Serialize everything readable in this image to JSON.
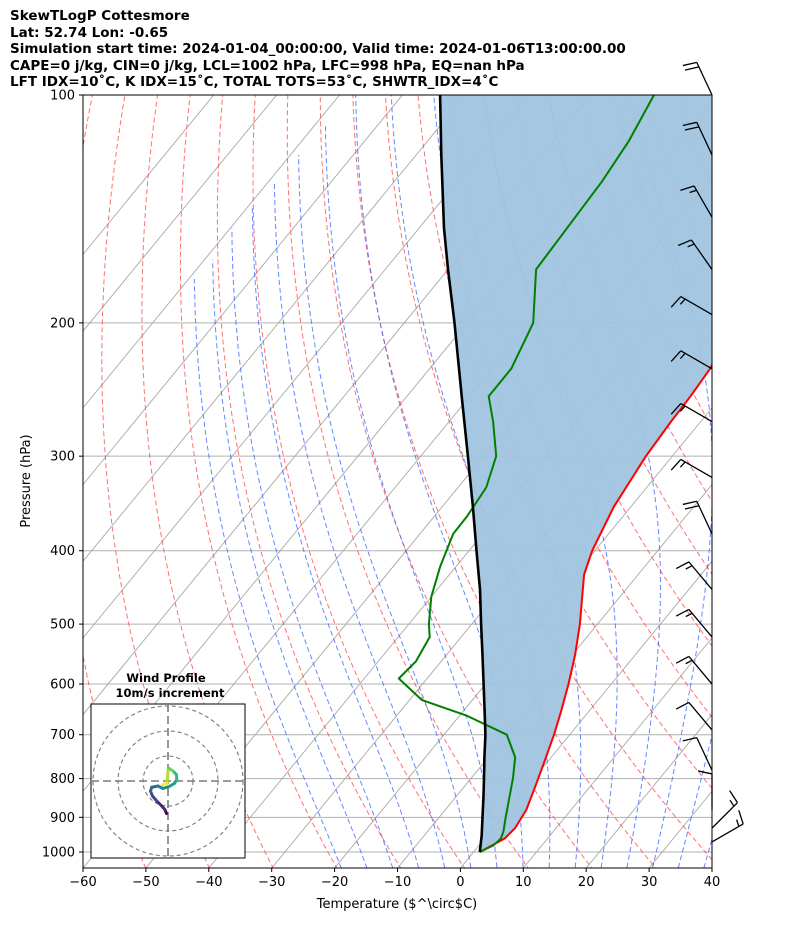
{
  "header": {
    "line1": "SkewTLogP Cottesmore",
    "line2": "Lat: 52.74   Lon: -0.65",
    "line3": "Simulation start time: 2024-01-04_00:00:00, Valid time: 2024-01-06T13:00:00.00",
    "line4": "CAPE=0 j/kg, CIN=0 j/kg, LCL=1002 hPa, LFC=998 hPa, EQ=nan hPa",
    "line5": "LFT IDX=10˚C, K IDX=15˚C, TOTAL TOTS=53˚C, SHWTR_IDX=4˚C"
  },
  "chart_data": {
    "type": "line",
    "subtype": "skew-T log-P",
    "xlabel": "Temperature ($^\\circ$C)",
    "ylabel": "Pressure (hPa)",
    "xlim": [
      -60,
      40
    ],
    "ylim": [
      1050,
      100
    ],
    "x_scale": "linear (skewed)",
    "y_scale": "log",
    "x_ticks": [
      -60,
      -50,
      -40,
      -30,
      -20,
      -10,
      0,
      10,
      20,
      30,
      40
    ],
    "x_tick_labels": [
      "−60",
      "−50",
      "−40",
      "−30",
      "−20",
      "−10",
      "0",
      "10",
      "20",
      "30",
      "40"
    ],
    "y_ticks": [
      100,
      200,
      300,
      400,
      500,
      600,
      700,
      800,
      900,
      1000
    ],
    "y_tick_labels": [
      "100",
      "200",
      "300",
      "400",
      "500",
      "600",
      "700",
      "800",
      "900",
      "1000"
    ],
    "grid": true,
    "series": [
      {
        "role": "temperature",
        "color": "#ff0000",
        "points": [
          [
            1000,
            1
          ],
          [
            960,
            3.2
          ],
          [
            930,
            3.5
          ],
          [
            880,
            2.9
          ],
          [
            820,
            1.3
          ],
          [
            760,
            -0.5
          ],
          [
            700,
            -2.5
          ],
          [
            650,
            -4.5
          ],
          [
            600,
            -6.8
          ],
          [
            550,
            -9.5
          ],
          [
            500,
            -12.8
          ],
          [
            460,
            -16
          ],
          [
            430,
            -18.6
          ],
          [
            400,
            -20.4
          ],
          [
            350,
            -22.7
          ],
          [
            300,
            -24.2
          ],
          [
            270,
            -24.7
          ],
          [
            250,
            -24.9
          ],
          [
            230,
            -25.4
          ],
          [
            200,
            -27.4
          ],
          [
            180,
            -30
          ],
          [
            160,
            -34
          ],
          [
            140,
            -39
          ],
          [
            120,
            -45
          ],
          [
            110,
            -49.5
          ],
          [
            100,
            -53
          ]
        ]
      },
      {
        "role": "dewpoint",
        "color": "#008000",
        "points": [
          [
            1000,
            1
          ],
          [
            980,
            2.3
          ],
          [
            960,
            2.6
          ],
          [
            940,
            2.1
          ],
          [
            900,
            0.6
          ],
          [
            850,
            -1.3
          ],
          [
            800,
            -3.3
          ],
          [
            750,
            -5.7
          ],
          [
            700,
            -10
          ],
          [
            660,
            -19
          ],
          [
            630,
            -28
          ],
          [
            590,
            -34.5
          ],
          [
            560,
            -34
          ],
          [
            520,
            -35
          ],
          [
            500,
            -36.8
          ],
          [
            460,
            -40
          ],
          [
            420,
            -42.5
          ],
          [
            380,
            -44.7
          ],
          [
            360,
            -44.8
          ],
          [
            330,
            -45.5
          ],
          [
            300,
            -48
          ],
          [
            270,
            -53
          ],
          [
            250,
            -57
          ],
          [
            230,
            -57
          ],
          [
            200,
            -59.5
          ],
          [
            170,
            -66
          ],
          [
            130,
            -67
          ],
          [
            115,
            -68
          ],
          [
            100,
            -70
          ]
        ]
      },
      {
        "role": "parcel",
        "color": "#000000",
        "points": [
          [
            1000,
            1
          ],
          [
            950,
            -0.9
          ],
          [
            900,
            -3.1
          ],
          [
            850,
            -5.4
          ],
          [
            800,
            -7.9
          ],
          [
            750,
            -10.6
          ],
          [
            700,
            -13.4
          ],
          [
            650,
            -16.7
          ],
          [
            600,
            -20.3
          ],
          [
            550,
            -24.2
          ],
          [
            500,
            -28.5
          ],
          [
            450,
            -33.2
          ],
          [
            400,
            -38.8
          ],
          [
            350,
            -45.1
          ],
          [
            300,
            -52.5
          ],
          [
            250,
            -61.3
          ],
          [
            200,
            -72
          ],
          [
            170,
            -80
          ],
          [
            150,
            -86
          ],
          [
            120,
            -96
          ],
          [
            100,
            -104
          ]
        ]
      }
    ],
    "cin_cape_fill": "#a0c4df",
    "wind_barbs": [
      {
        "p": 100,
        "dir": 335,
        "spd": 20
      },
      {
        "p": 120,
        "dir": 335,
        "spd": 20
      },
      {
        "p": 145,
        "dir": 330,
        "spd": 15
      },
      {
        "p": 170,
        "dir": 325,
        "spd": 15
      },
      {
        "p": 195,
        "dir": 300,
        "spd": 15
      },
      {
        "p": 230,
        "dir": 300,
        "spd": 15
      },
      {
        "p": 270,
        "dir": 300,
        "spd": 15
      },
      {
        "p": 320,
        "dir": 300,
        "spd": 15
      },
      {
        "p": 380,
        "dir": 335,
        "spd": 20
      },
      {
        "p": 450,
        "dir": 320,
        "spd": 15
      },
      {
        "p": 520,
        "dir": 320,
        "spd": 15
      },
      {
        "p": 600,
        "dir": 320,
        "spd": 15
      },
      {
        "p": 690,
        "dir": 320,
        "spd": 10
      },
      {
        "p": 780,
        "dir": 335,
        "spd": 10
      },
      {
        "p": 880,
        "dir": 0,
        "spd": 10
      },
      {
        "p": 930,
        "dir": 45,
        "spd": 15
      },
      {
        "p": 970,
        "dir": 60,
        "spd": 15
      }
    ],
    "inset": {
      "title": "Wind Profile",
      "subtitle": "10m/s increment",
      "rings_ms": [
        10,
        20,
        30
      ],
      "hodograph_uv": [
        [
          -0.6,
          -13
        ],
        [
          -1.2,
          -11.5
        ],
        [
          -2.5,
          -10
        ],
        [
          -4.5,
          -8
        ],
        [
          -6.2,
          -6
        ],
        [
          -7,
          -4
        ],
        [
          -6.5,
          -2.5
        ],
        [
          -4,
          -2
        ],
        [
          -2,
          -3
        ],
        [
          0.5,
          -2.2
        ],
        [
          2.5,
          -1
        ],
        [
          3.5,
          0.5
        ],
        [
          3.4,
          2.5
        ],
        [
          2,
          4
        ],
        [
          0.5,
          5
        ],
        [
          0,
          4
        ],
        [
          -0.2,
          1
        ],
        [
          -0.5,
          -1
        ],
        [
          -2,
          -1.5
        ]
      ]
    }
  }
}
